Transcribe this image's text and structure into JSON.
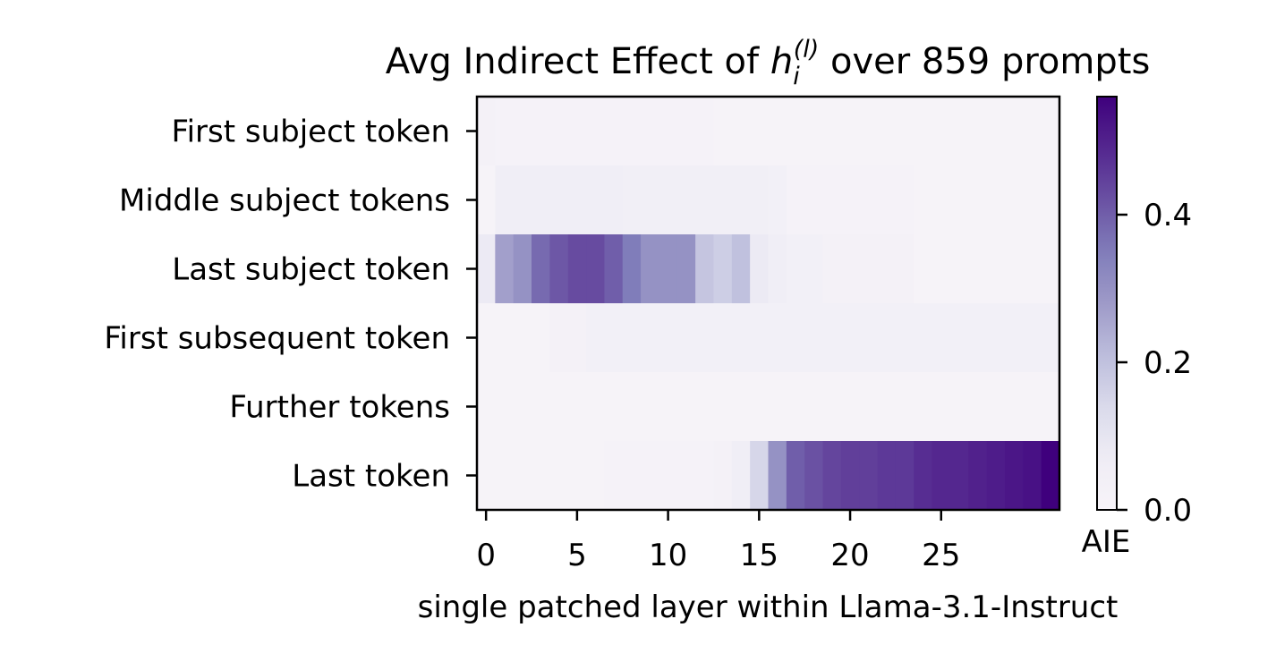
{
  "chart_data": {
    "type": "heatmap",
    "title_prefix": "Avg Indirect Effect of ",
    "title_var": "h",
    "title_sub": "i",
    "title_sup": "(l)",
    "title_suffix": " over 859 prompts",
    "xlabel": "single patched layer within Llama-3.1-Instruct",
    "x_ticks": [
      0,
      5,
      10,
      15,
      20,
      25
    ],
    "x_tick_labels": [
      "0",
      "5",
      "10",
      "15",
      "20",
      "25"
    ],
    "xlim": [
      -0.5,
      31.5
    ],
    "rows": [
      "First subject token",
      "Middle subject tokens",
      "Last subject token",
      "First subsequent token",
      "Further tokens",
      "Last token"
    ],
    "colorbar": {
      "label": "AIE",
      "range": [
        0,
        0.56
      ],
      "ticks": [
        0,
        0.2,
        0.4
      ],
      "tick_labels": [
        "0.0",
        "0.2",
        "0.4"
      ],
      "colormap": "Purples"
    },
    "values": [
      [
        0.03,
        0.02,
        0.02,
        0.02,
        0.02,
        0.02,
        0.02,
        0.02,
        0.02,
        0.02,
        0.02,
        0.02,
        0.02,
        0.01,
        0.01,
        0.01,
        0.01,
        0.01,
        0.01,
        0.01,
        0.01,
        0.01,
        0.01,
        0.01,
        0.01,
        0.01,
        0.01,
        0.01,
        0.01,
        0.01,
        0.01,
        0.01
      ],
      [
        0.01,
        0.06,
        0.06,
        0.06,
        0.06,
        0.06,
        0.06,
        0.06,
        0.05,
        0.05,
        0.05,
        0.05,
        0.05,
        0.05,
        0.05,
        0.05,
        0.04,
        0.02,
        0.02,
        0.02,
        0.02,
        0.02,
        0.02,
        0.02,
        0.01,
        0.01,
        0.01,
        0.01,
        0.01,
        0.01,
        0.01,
        0.01
      ],
      [
        0.08,
        0.27,
        0.3,
        0.38,
        0.41,
        0.43,
        0.43,
        0.4,
        0.35,
        0.3,
        0.3,
        0.3,
        0.19,
        0.17,
        0.2,
        0.08,
        0.06,
        0.04,
        0.04,
        0.03,
        0.03,
        0.03,
        0.03,
        0.03,
        0.01,
        0.01,
        0.01,
        0.01,
        0.01,
        0.01,
        0.01,
        0.01
      ],
      [
        0.01,
        0.01,
        0.01,
        0.01,
        0.03,
        0.03,
        0.04,
        0.04,
        0.04,
        0.04,
        0.04,
        0.04,
        0.04,
        0.04,
        0.04,
        0.04,
        0.04,
        0.04,
        0.04,
        0.04,
        0.04,
        0.04,
        0.04,
        0.04,
        0.04,
        0.04,
        0.04,
        0.04,
        0.04,
        0.04,
        0.04,
        0.04
      ],
      [
        0.01,
        0.01,
        0.01,
        0.01,
        0.01,
        0.01,
        0.01,
        0.01,
        0.01,
        0.01,
        0.01,
        0.01,
        0.01,
        0.01,
        0.01,
        0.01,
        0.01,
        0.01,
        0.01,
        0.01,
        0.01,
        0.01,
        0.01,
        0.01,
        0.01,
        0.01,
        0.01,
        0.01,
        0.01,
        0.01,
        0.01,
        0.01
      ],
      [
        0.01,
        0.01,
        0.01,
        0.01,
        0.01,
        0.01,
        0.01,
        0.02,
        0.02,
        0.02,
        0.02,
        0.02,
        0.02,
        0.03,
        0.06,
        0.15,
        0.3,
        0.4,
        0.42,
        0.44,
        0.45,
        0.45,
        0.46,
        0.46,
        0.48,
        0.49,
        0.49,
        0.5,
        0.51,
        0.52,
        0.53,
        0.56
      ]
    ]
  }
}
